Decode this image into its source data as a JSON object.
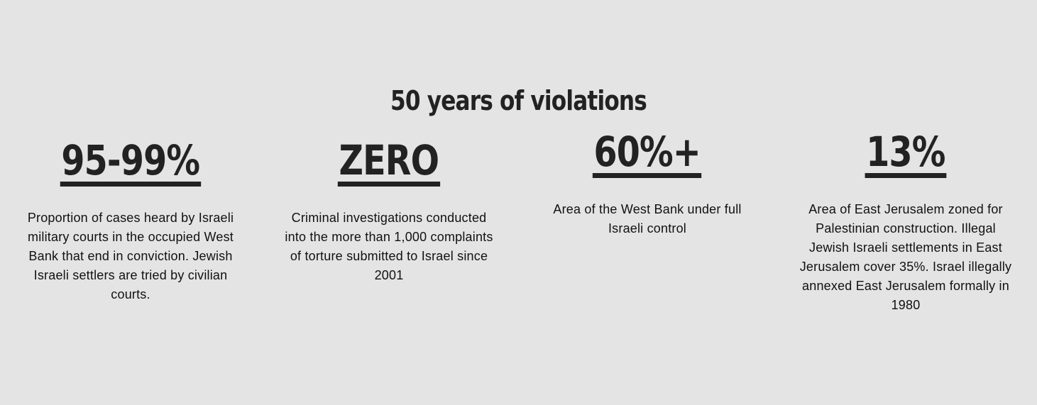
{
  "section": {
    "title": "50 years of violations"
  },
  "stats": [
    {
      "value": "95-99%",
      "description": "Proportion of cases heard by Israeli military courts in the occupied West Bank that end in conviction. Jewish Israeli settlers are tried by civilian courts."
    },
    {
      "value": "ZERO",
      "description": "Criminal investigations conducted into the more than 1,000 complaints of torture submitted to Israel since 2001"
    },
    {
      "value": "60%+",
      "description": "Area of the West Bank under full Israeli control"
    },
    {
      "value": "13%",
      "description": "Area of East Jerusalem zoned for Palestinian construction. Illegal Jewish Israeli settlements in East Jerusalem cover 35%. Israel illegally annexed East Jerusalem formally in 1980"
    }
  ],
  "colors": {
    "background": "#e4e4e4",
    "text": "#222222"
  }
}
